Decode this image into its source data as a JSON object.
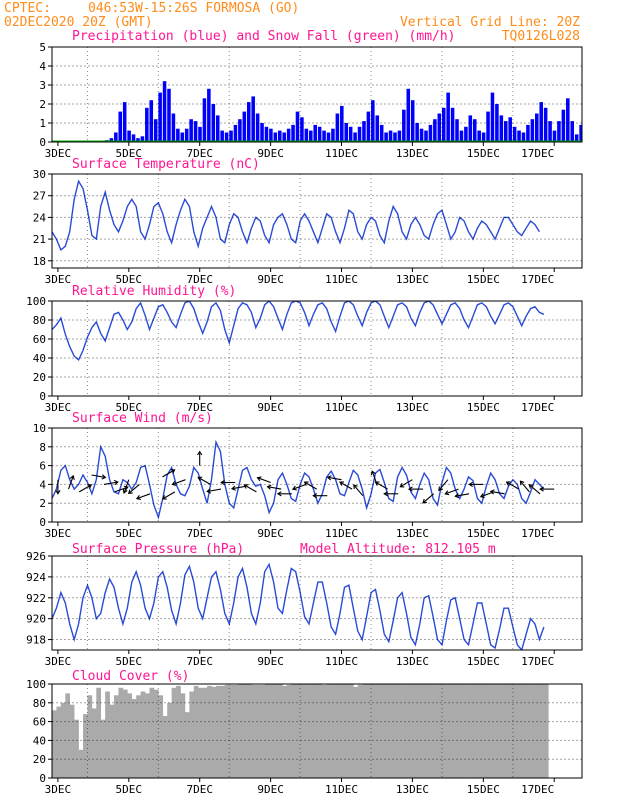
{
  "header": {
    "org": "CPTEC:",
    "location": "046:53W-15:26S  FORMOSA (GO)",
    "run": "02DEC2020 20Z (GMT)",
    "grid_note": "Vertical Grid Line: 20Z",
    "run_code": "TQ0126L028",
    "model_altitude": "Model Altitude: 812.105 m"
  },
  "colors": {
    "header": "#ff8c1a",
    "titles": "#ff1493",
    "precipitation": "#0000ff",
    "snow": "#00aa00",
    "line": "#2a4bd7",
    "wind_arrow": "#000000",
    "cloud": "#aaaaaa"
  },
  "x_tick_labels": [
    "3DEC",
    "5DEC",
    "7DEC",
    "9DEC",
    "11DEC",
    "13DEC",
    "15DEC",
    "17DEC"
  ],
  "chart_data": [
    {
      "type": "bar",
      "title": "Precipitation (blue) and Snow Fall (green) (mm/h)",
      "ylim": [
        0,
        5
      ],
      "yticks": [
        0,
        1,
        2,
        3,
        4,
        5
      ],
      "x_start_day": 2,
      "step_hours": 3,
      "series": [
        {
          "name": "Precipitation (blue)",
          "values": [
            0,
            0,
            0,
            0,
            0,
            0,
            0,
            0,
            0,
            0,
            0,
            0,
            0.1,
            0.2,
            0.5,
            1.6,
            2.1,
            0.6,
            0.4,
            0.2,
            0.3,
            1.8,
            2.2,
            1.2,
            2.6,
            3.2,
            2.8,
            1.5,
            0.7,
            0.5,
            0.7,
            1.2,
            1.1,
            0.8,
            2.3,
            2.8,
            2.0,
            1.4,
            0.6,
            0.5,
            0.6,
            0.9,
            1.2,
            1.6,
            2.1,
            2.4,
            1.5,
            1.0,
            0.8,
            0.7,
            0.5,
            0.6,
            0.5,
            0.7,
            0.9,
            1.6,
            1.3,
            0.7,
            0.6,
            0.9,
            0.8,
            0.6,
            0.5,
            0.7,
            1.5,
            1.9,
            1.0,
            0.8,
            0.5,
            0.8,
            1.1,
            1.6,
            2.2,
            1.4,
            0.9,
            0.5,
            0.6,
            0.5,
            0.6,
            1.7,
            2.8,
            2.2,
            1.0,
            0.7,
            0.6,
            0.9,
            1.2,
            1.5,
            1.8,
            2.6,
            1.8,
            1.2,
            0.6,
            0.8,
            1.4,
            1.2,
            0.6,
            0.5,
            1.6,
            2.6,
            2.0,
            1.4,
            1.1,
            1.3,
            0.8,
            0.6,
            0.5,
            0.9,
            1.2,
            1.5,
            2.1,
            1.8,
            1.1,
            0.6,
            1.1,
            1.7,
            2.3,
            1.1,
            0.4,
            0.9,
            1.6,
            1.2
          ]
        },
        {
          "name": "Snow Fall (green)",
          "values": [
            0
          ]
        }
      ]
    },
    {
      "type": "line",
      "title": "Surface Temperature (nC)",
      "ylim": [
        17,
        30
      ],
      "yticks": [
        18,
        21,
        24,
        27,
        30
      ],
      "x_start_day": 2,
      "step_hours": 3,
      "series": [
        {
          "name": "Surface Temperature",
          "values": [
            22,
            21,
            19.5,
            20,
            22,
            26.5,
            29,
            28,
            25,
            21.5,
            21,
            25.5,
            27.5,
            25,
            23,
            22,
            23.5,
            25.5,
            26.5,
            25.5,
            22,
            21,
            23,
            25.5,
            26,
            24.5,
            22,
            20.5,
            23,
            25,
            26.5,
            25.5,
            22,
            20,
            22.5,
            24,
            25.5,
            24,
            21,
            20.5,
            23,
            24.5,
            24,
            22,
            20.5,
            22.5,
            24,
            23.5,
            21.5,
            20.5,
            23,
            24,
            24.5,
            23,
            21,
            20.5,
            23.5,
            24.5,
            23.5,
            22,
            20.5,
            22.5,
            24.5,
            24,
            22,
            20.5,
            22.5,
            25,
            24.5,
            22,
            21,
            23,
            24,
            23.5,
            21.5,
            20.5,
            23.5,
            25.5,
            24.5,
            22,
            21,
            23,
            24,
            23,
            21.5,
            21,
            23,
            24.5,
            25,
            23,
            21,
            22,
            24,
            23.5,
            22,
            21,
            22.5,
            23.5,
            23,
            22,
            21,
            22.5,
            24,
            24,
            23,
            22,
            21.5,
            22.5,
            23.5,
            23,
            22
          ]
        }
      ]
    },
    {
      "type": "line",
      "title": "Relative Humidity (%)",
      "ylim": [
        0,
        100
      ],
      "yticks": [
        0,
        20,
        40,
        60,
        80,
        100
      ],
      "x_start_day": 2,
      "step_hours": 3,
      "series": [
        {
          "name": "Relative Humidity",
          "values": [
            70,
            75,
            82,
            65,
            52,
            42,
            38,
            48,
            62,
            72,
            78,
            66,
            58,
            72,
            86,
            88,
            80,
            70,
            78,
            92,
            98,
            85,
            70,
            82,
            94,
            96,
            88,
            78,
            72,
            86,
            98,
            100,
            92,
            78,
            66,
            78,
            94,
            98,
            90,
            70,
            56,
            74,
            92,
            98,
            96,
            88,
            72,
            82,
            96,
            100,
            94,
            82,
            70,
            86,
            98,
            100,
            98,
            88,
            74,
            86,
            96,
            98,
            92,
            78,
            68,
            84,
            98,
            100,
            96,
            84,
            74,
            88,
            98,
            100,
            96,
            84,
            72,
            84,
            96,
            98,
            94,
            82,
            74,
            88,
            98,
            100,
            96,
            86,
            76,
            86,
            96,
            98,
            92,
            80,
            72,
            84,
            96,
            98,
            94,
            84,
            76,
            86,
            96,
            98,
            94,
            84,
            74,
            84,
            92,
            94,
            88,
            86
          ]
        }
      ]
    },
    {
      "type": "line",
      "title": "Surface Wind (m/s)",
      "ylim": [
        0,
        10
      ],
      "yticks": [
        0,
        2,
        4,
        6,
        8,
        10
      ],
      "x_start_day": 2,
      "step_hours": 3,
      "series": [
        {
          "name": "Surface Wind",
          "values": [
            2.5,
            3.5,
            5.5,
            6,
            4.5,
            3.5,
            4,
            5,
            4.2,
            3,
            4.5,
            8,
            7,
            4.5,
            3.2,
            3,
            4.5,
            4.2,
            3.5,
            4.2,
            5.8,
            6,
            4,
            1.8,
            0.5,
            2.5,
            5,
            5.8,
            4,
            3,
            2.8,
            3.8,
            5.8,
            5.2,
            3.5,
            2,
            4.5,
            8.5,
            7.5,
            4,
            2,
            1.5,
            3.5,
            5.5,
            5.8,
            4.5,
            3.8,
            4,
            2.8,
            1,
            2,
            4.5,
            5.2,
            4,
            2.5,
            2.2,
            4,
            5.2,
            4.8,
            3.5,
            2,
            3,
            4.8,
            5.4,
            4.5,
            3,
            2.8,
            4.2,
            5.5,
            5,
            3.5,
            1.5,
            3,
            5.2,
            5.6,
            4.2,
            2.5,
            2.2,
            4.8,
            5.8,
            5,
            3.2,
            2.5,
            4,
            5.2,
            4.5,
            2.5,
            1.8,
            4.2,
            5.8,
            5.2,
            3.5,
            2.5,
            3.5,
            4.8,
            4.4,
            2.5,
            2,
            3.8,
            5.2,
            4.5,
            3,
            2.5,
            3.8,
            4.5,
            4,
            2.5,
            2,
            3.2,
            4.5,
            4,
            3.5
          ]
        }
      ]
    },
    {
      "type": "line",
      "title": "Surface Pressure (hPa)",
      "ylim": [
        917,
        926
      ],
      "yticks": [
        918,
        920,
        922,
        924,
        926
      ],
      "x_start_day": 2,
      "step_hours": 3,
      "series": [
        {
          "name": "Surface Pressure",
          "values": [
            920,
            921,
            922.5,
            921.5,
            919.5,
            918,
            919.5,
            922,
            923.2,
            922,
            920,
            920.5,
            922.5,
            923.8,
            923,
            921,
            919.5,
            921,
            923.5,
            924.5,
            923.2,
            921,
            920,
            921.5,
            924,
            924.5,
            923,
            920.8,
            919.5,
            921.5,
            924.2,
            925,
            923.5,
            921,
            920,
            922,
            924,
            924.5,
            922.8,
            920.5,
            919.5,
            921.5,
            924,
            924.8,
            923,
            920.5,
            919.5,
            921.5,
            924.5,
            925.2,
            923.5,
            921,
            920.5,
            922.8,
            924.8,
            924.5,
            922.5,
            920.2,
            919.5,
            921.5,
            923.5,
            923.5,
            921.5,
            919.2,
            918.5,
            920.5,
            923,
            923.2,
            921,
            918.8,
            918,
            920.2,
            922.5,
            922.8,
            920.8,
            918.5,
            917.8,
            919.8,
            922,
            922.5,
            920.5,
            918.2,
            917.5,
            919.5,
            922,
            922.2,
            920.2,
            918,
            917.5,
            919.8,
            921.8,
            922,
            920,
            918,
            917.5,
            919.5,
            921.5,
            921.5,
            919.5,
            917.5,
            917.2,
            919,
            921,
            921,
            919.2,
            917.5,
            917,
            918.5,
            920,
            919.5,
            918,
            919.2
          ]
        }
      ]
    },
    {
      "type": "bar",
      "title": "Cloud Cover (%)",
      "ylim": [
        0,
        100
      ],
      "yticks": [
        0,
        20,
        40,
        60,
        80,
        100
      ],
      "x_start_day": 2,
      "step_hours": 3,
      "series": [
        {
          "name": "Cloud Cover",
          "values": [
            72,
            76,
            80,
            90,
            78,
            62,
            30,
            68,
            88,
            74,
            96,
            62,
            92,
            78,
            88,
            96,
            94,
            90,
            84,
            88,
            92,
            90,
            96,
            94,
            88,
            66,
            80,
            96,
            98,
            90,
            70,
            92,
            98,
            96,
            96,
            98,
            97,
            98,
            98,
            99,
            99,
            99,
            100,
            100,
            100,
            99,
            99,
            99,
            100,
            100,
            100,
            100,
            98,
            99,
            100,
            100,
            100,
            100,
            100,
            100,
            100,
            99,
            100,
            100,
            100,
            100,
            100,
            100,
            97,
            99,
            100,
            100,
            100,
            100,
            100,
            100,
            100,
            100,
            100,
            100,
            100,
            100,
            100,
            100,
            100,
            100,
            100,
            100,
            100,
            100,
            100,
            100,
            100,
            100,
            100,
            100,
            100,
            100,
            100,
            100,
            100,
            100,
            100,
            100,
            100,
            100,
            100,
            100,
            100,
            100,
            100,
            100
          ]
        }
      ]
    }
  ],
  "wind_arrows": {
    "days": [
      2.2,
      2.55,
      3.0,
      3.3,
      3.6,
      3.95,
      4.3,
      4.6,
      5.0,
      5.3,
      5.6,
      5.95,
      6.3,
      6.6,
      7.0,
      7.3,
      7.6,
      8.0,
      8.3,
      8.6,
      9.0,
      9.3,
      9.6,
      10.0,
      10.3,
      10.6,
      11.0,
      11.3,
      11.6,
      12.0,
      12.3,
      12.6,
      13.0,
      13.3,
      13.6,
      14.0,
      14.3,
      14.6,
      15.0,
      15.3,
      15.6,
      16.0,
      16.3,
      16.6,
      17.0
    ],
    "direction_deg": [
      225,
      250,
      180,
      20,
      60,
      100,
      80,
      70,
      200,
      230,
      250,
      60,
      240,
      250,
      0,
      300,
      260,
      270,
      260,
      300,
      290,
      280,
      270,
      250,
      300,
      270,
      280,
      300,
      320,
      340,
      300,
      270,
      240,
      270,
      230,
      220,
      250,
      260,
      270,
      250,
      280,
      300,
      320,
      310,
      270
    ],
    "speed_ms": [
      2.5,
      3,
      4.5,
      3.5,
      3.2,
      5,
      4,
      3.2,
      4.5,
      4,
      3,
      4.8,
      3.2,
      4.5,
      6,
      4,
      3.5,
      4.2,
      3.8,
      3.2,
      4.2,
      3.5,
      3,
      4,
      3.5,
      2.8,
      4.5,
      3.5,
      2.8,
      4,
      3.5,
      3,
      4.5,
      3.5,
      3,
      4.5,
      3.5,
      3,
      4,
      3.2,
      3,
      3.5,
      3.2,
      3,
      3.5
    ]
  }
}
